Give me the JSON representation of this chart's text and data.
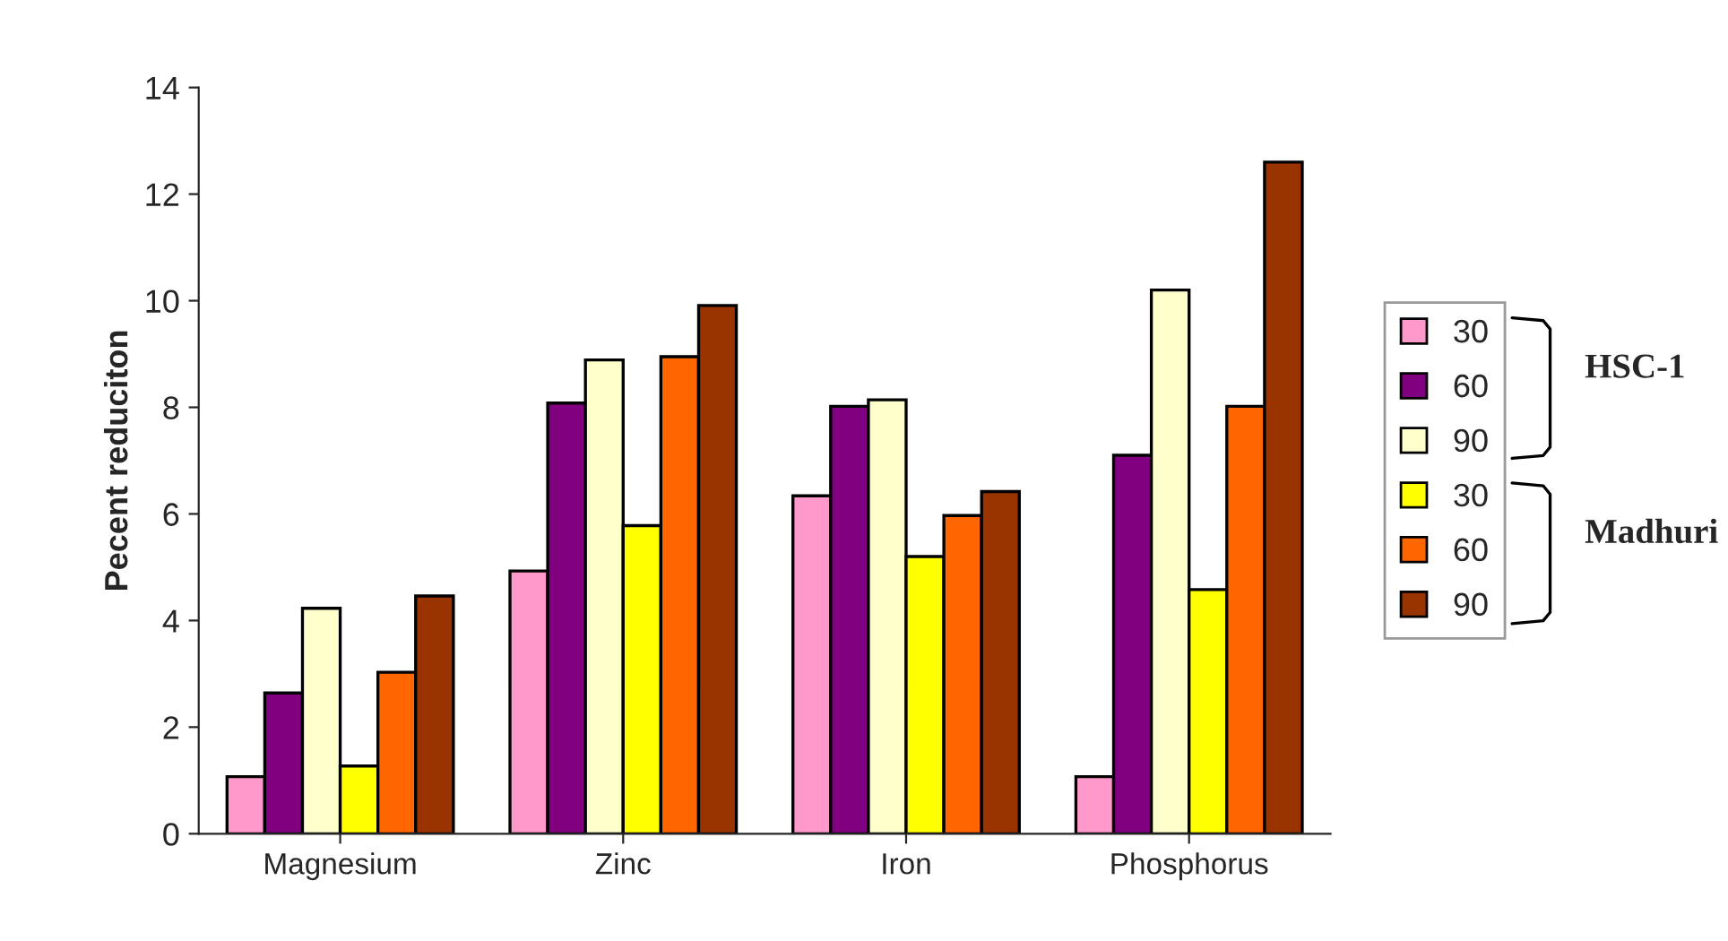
{
  "chart_data": {
    "type": "bar",
    "ylabel": "Pecent reduciton",
    "categories": [
      "Magnesium",
      "Zinc",
      "Iron",
      "Phosphorus"
    ],
    "series": [
      {
        "name": "30",
        "color": "#ff99cc",
        "values": [
          1.07,
          4.93,
          6.34,
          1.07
        ]
      },
      {
        "name": "60",
        "color": "#800080",
        "values": [
          2.64,
          8.08,
          8.02,
          7.1
        ]
      },
      {
        "name": "90",
        "color": "#ffffcc",
        "values": [
          4.23,
          8.89,
          8.14,
          10.2
        ]
      },
      {
        "name": "30",
        "color": "#ffff00",
        "values": [
          1.27,
          5.78,
          5.2,
          4.58
        ]
      },
      {
        "name": "60",
        "color": "#ff6600",
        "values": [
          3.03,
          8.95,
          5.97,
          8.02
        ]
      },
      {
        "name": "90",
        "color": "#993300",
        "values": [
          4.46,
          9.91,
          6.42,
          12.6
        ]
      }
    ],
    "ylim": [
      0,
      14
    ],
    "yticks": [
      0,
      2,
      4,
      6,
      8,
      10,
      12,
      14
    ],
    "grid": false,
    "legend": "right",
    "annotations": [
      "HSC-1",
      "Madhuri"
    ]
  }
}
